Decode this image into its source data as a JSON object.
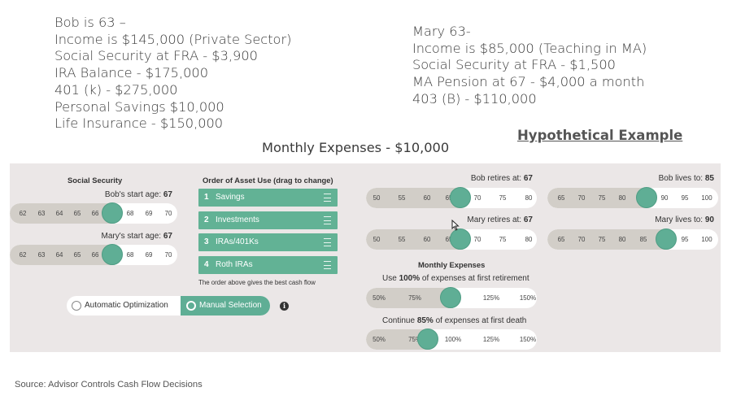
{
  "bob_bio": [
    "Bob is 63 –",
    "Income is $145,000 (Private Sector)",
    "Social Security at FRA - $3,900",
    "IRA Balance - $175,000",
    "401 (k) - $275,000",
    "Personal Savings $10,000",
    "Life Insurance - $150,000"
  ],
  "mary_bio": [
    "Mary 63-",
    "Income is $85,000 (Teaching in MA)",
    "Social Security at FRA - $1,500",
    "MA Pension at 67 - $4,000 a month",
    "403 (B) - $110,000"
  ],
  "hypothetical": "Hypothetical Example",
  "monthly_expenses_headline": "Monthly Expenses - $10,000",
  "source": "Source: Advisor Controls Cash Flow Decisions",
  "social_security": {
    "title": "Social Security",
    "bob_label": "Bob's start age:",
    "bob_value": "67",
    "mary_label": "Mary's start age:",
    "mary_value": "67",
    "ticks": [
      "62",
      "63",
      "64",
      "65",
      "66",
      "67",
      "68",
      "69",
      "70"
    ]
  },
  "asset_order": {
    "title": "Order of Asset Use (drag to change)",
    "items": [
      {
        "num": "1",
        "name": "Savings"
      },
      {
        "num": "2",
        "name": "Investments"
      },
      {
        "num": "3",
        "name": "IRAs/401Ks"
      },
      {
        "num": "4",
        "name": "Roth IRAs"
      }
    ],
    "note": "The order above gives the best cash flow"
  },
  "optimization": {
    "auto_label": "Automatic Optimization",
    "manual_label": "Manual Selection",
    "selected": "manual"
  },
  "retire": {
    "bob_label": "Bob retires at:",
    "bob_value": "67",
    "mary_label": "Mary retires at:",
    "mary_value": "67",
    "ticks": [
      "50",
      "55",
      "60",
      "65",
      "70",
      "75",
      "80"
    ]
  },
  "lives": {
    "bob_label": "Bob lives to:",
    "bob_value": "85",
    "mary_label": "Mary lives to:",
    "mary_value": "90",
    "ticks": [
      "65",
      "70",
      "75",
      "80",
      "85",
      "90",
      "95",
      "100"
    ]
  },
  "monthly": {
    "title": "Monthly Expenses",
    "first_pre": "Use ",
    "first_value": "100%",
    "first_post": " of expenses at first retirement",
    "second_pre": "Continue ",
    "second_value": "85%",
    "second_post": " of expenses at first death",
    "ticks": [
      "50%",
      "75%",
      "100%",
      "125%",
      "150%"
    ]
  },
  "colors": {
    "accent": "#5fae95",
    "panel_bg": "#ebe7e7",
    "track_fill": "#d2cec8"
  }
}
